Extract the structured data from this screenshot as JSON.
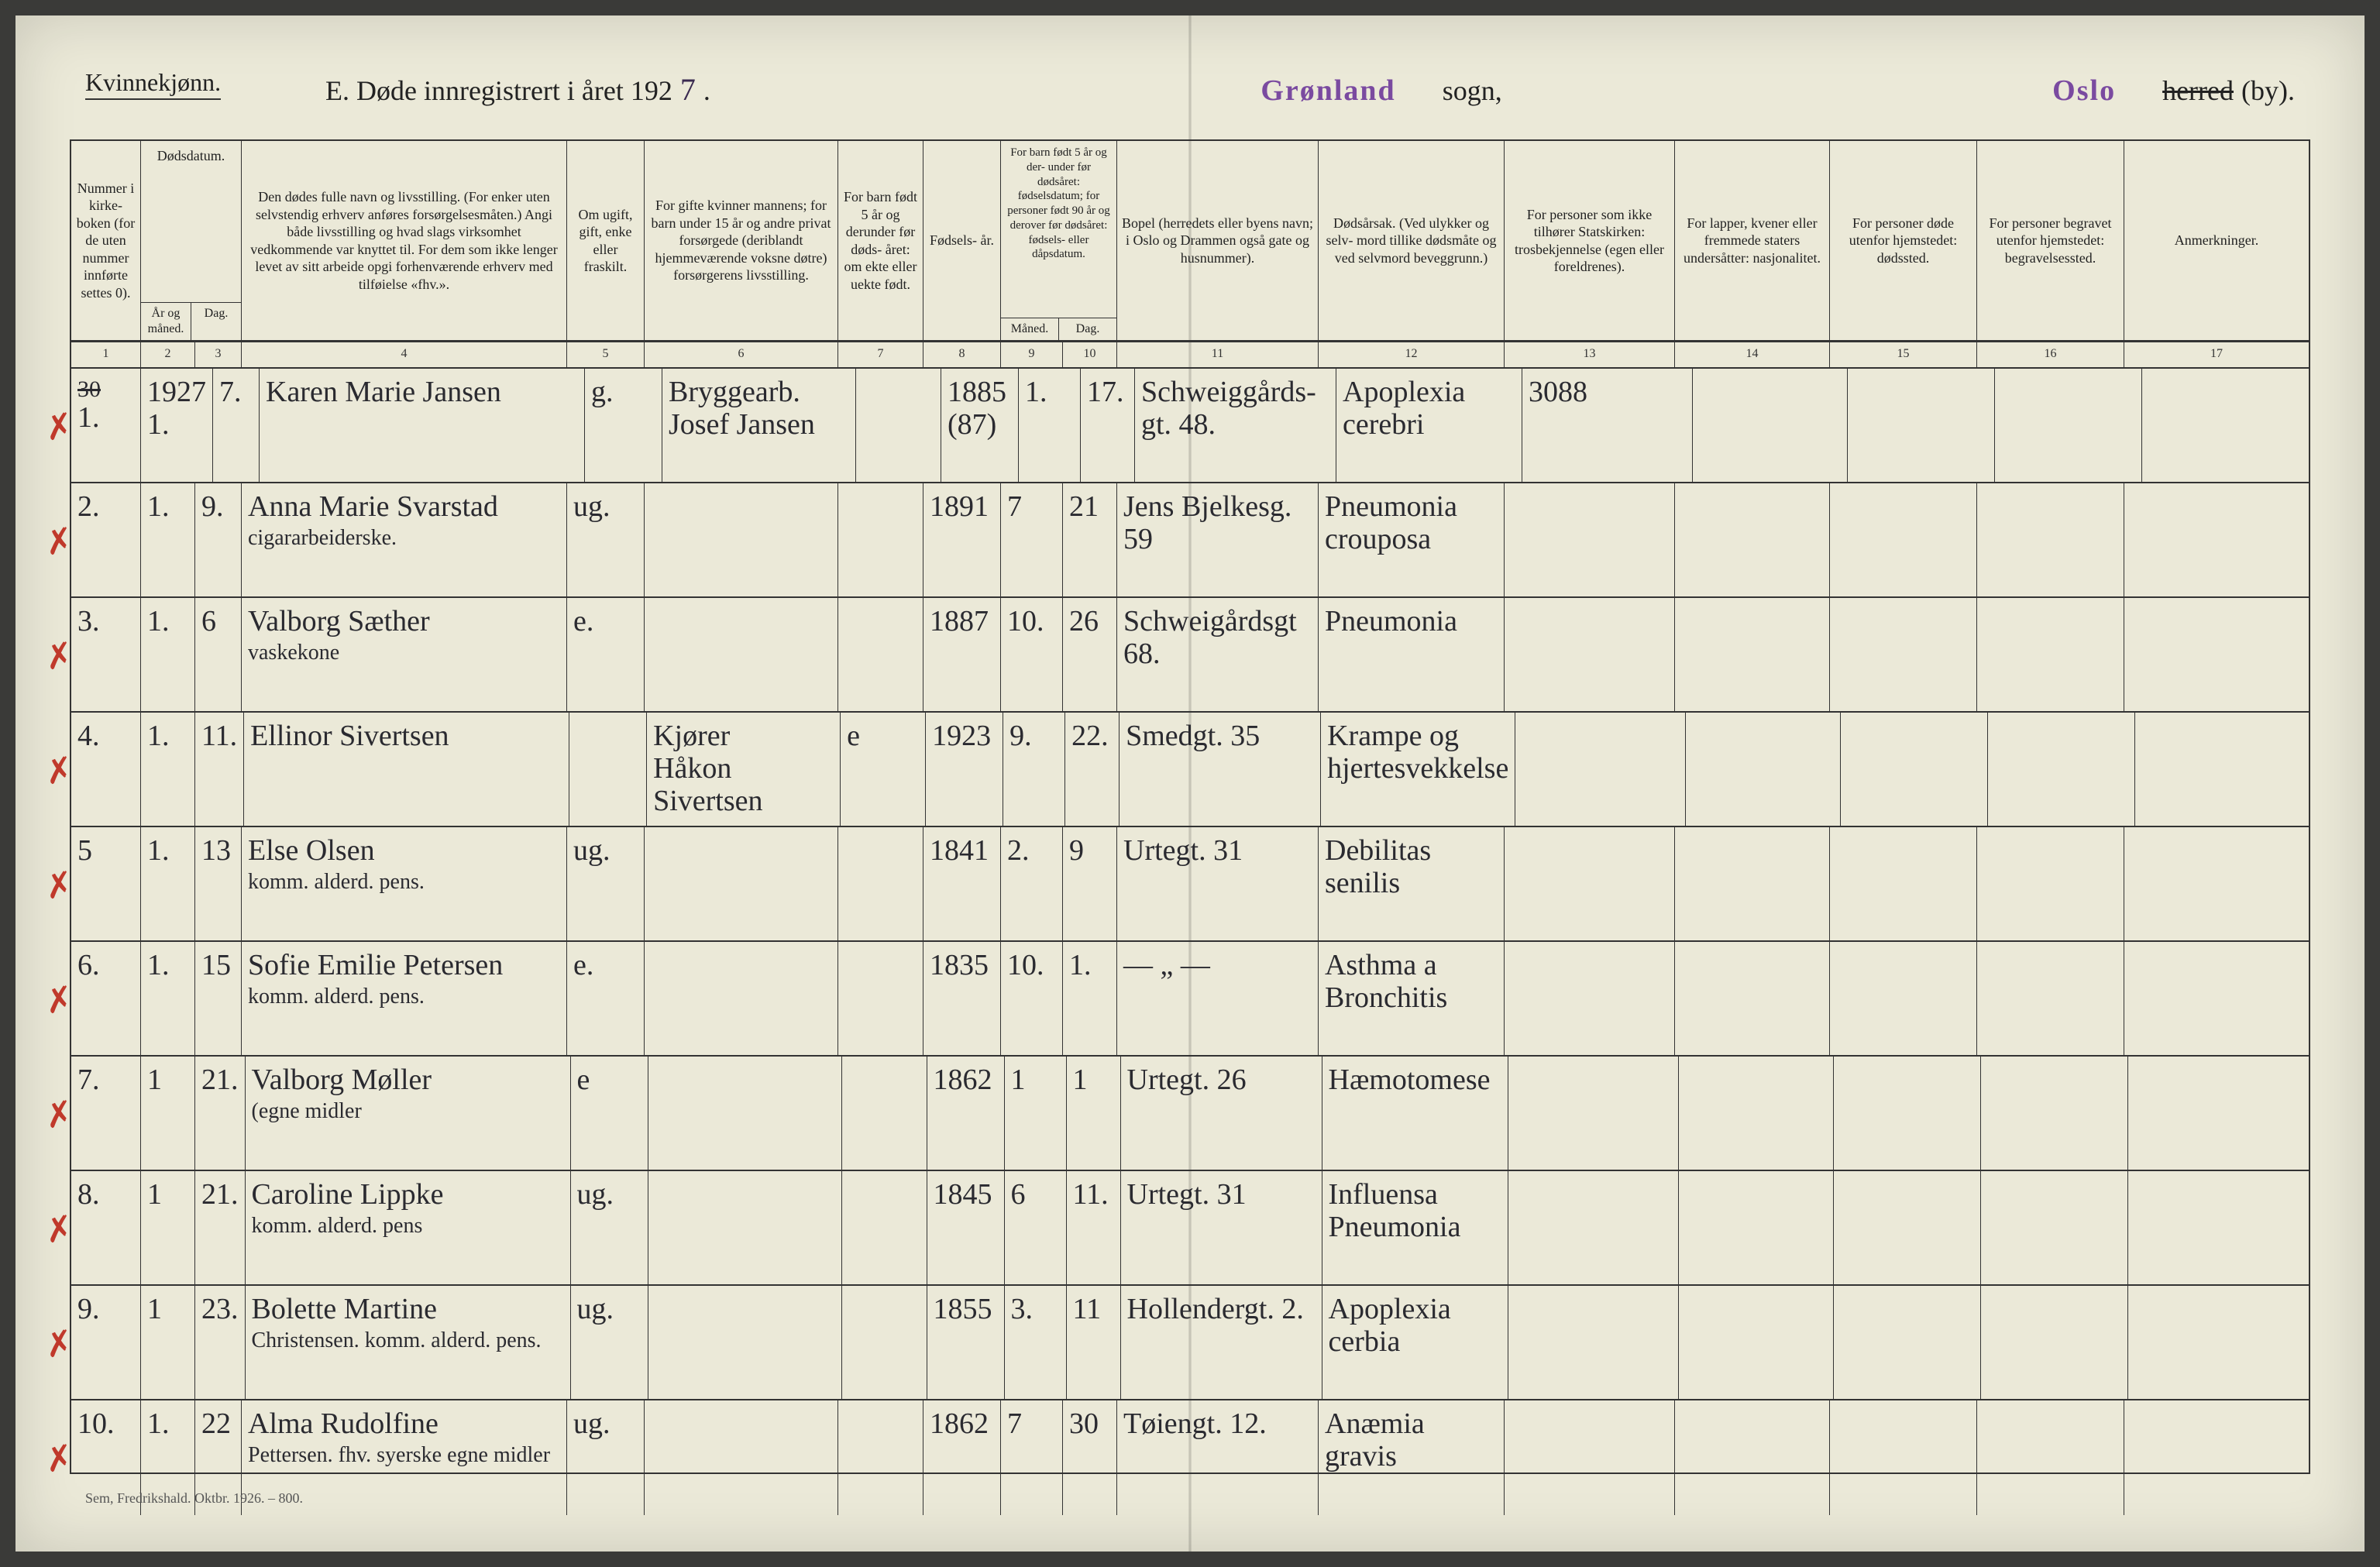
{
  "page": {
    "gender_label": "Kvinnekjønn.",
    "title_prefix": "E.   Døde innregistrert i året 192",
    "year_handwritten": "7",
    "period": ".",
    "parish_stamp": "Grønland",
    "parish_word": "sogn,",
    "city_stamp": "Oslo",
    "herred_struck": "herred",
    "by_word": "(by).",
    "footer": "Sem, Fredrikshald. Oktbr. 1926. – 800."
  },
  "headers": {
    "c1": "Nummer i kirke- boken (for de uten nummer innførte settes 0).",
    "c2": "Dødsdatum.",
    "c2a": "År og måned.",
    "c2b": "Dag.",
    "c3": "Den dødes fulle navn og livsstilling. (For enker uten selvstendig erhverv anføres forsørgelsesmåten.) Angi både livsstilling og hvad slags virksomhet vedkommende var knyttet til. For dem som ikke lenger levet av sitt arbeide opgi forhenværende erhverv med tilføielse «fhv.».",
    "c4": "Om ugift, gift, enke eller fraskilt.",
    "c5": "For gifte kvinner mannens; for barn under 15 år og andre privat forsørgede (deriblandt hjemmeværende voksne døtre) forsørgerens livsstilling.",
    "c6": "For barn født 5 år og derunder før døds- året: om ekte eller uekte født.",
    "c7": "Fødsels- år.",
    "c8": "For barn født 5 år og der- under før dødsåret: fødselsdatum; for personer født 90 år og derover før dødsåret: fødsels- eller dåpsdatum.",
    "c8a": "Måned.",
    "c8b": "Dag.",
    "c9": "Bopel (herredets eller byens navn; i Oslo og Drammen også gate og husnummer).",
    "c10": "Dødsårsak. (Ved ulykker og selv- mord tillike dødsmåte og ved selvmord beveggrunn.)",
    "c11": "For personer som ikke tilhører Statskirken: trosbekjennelse (egen eller foreldrenes).",
    "c12": "For lapper, kvener eller fremmede staters undersåtter: nasjonalitet.",
    "c13": "For personer døde utenfor hjemstedet: dødssted.",
    "c14": "For personer begravet utenfor hjemstedet: begravelsessted.",
    "c15": "Anmerkninger."
  },
  "colnums": [
    "1",
    "2",
    "3",
    "4",
    "5",
    "6",
    "7",
    "8",
    "9",
    "10",
    "11",
    "12",
    "13",
    "14",
    "15",
    "16",
    "17"
  ],
  "rows": [
    {
      "mark": "✗",
      "num_top": "30",
      "num": "1.",
      "yearmon": "1927\n1.",
      "day": "7.",
      "name": "Karen Marie Jansen",
      "name2": "",
      "status": "g.",
      "provider": "Bryggearb.\nJosef Jansen",
      "legit": "",
      "birth": "1885\n(87)",
      "bmon": "1.",
      "bday": "17.",
      "residence": "Schweiggårds- gt. 48.",
      "cause": "Apoplexia cerebri",
      "c11": "3088",
      "c11_style": "pencil"
    },
    {
      "mark": "✗",
      "num": "2.",
      "yearmon": "1.",
      "day": "9.",
      "name": "Anna Marie Svarstad",
      "name2": "cigararbeiderske.",
      "status": "ug.",
      "provider": "",
      "legit": "",
      "birth": "1891",
      "bmon": "7",
      "bday": "21",
      "residence": "Jens Bjelkesg. 59",
      "cause": "Pneumonia crouposa"
    },
    {
      "mark": "✗",
      "num": "3.",
      "yearmon": "1.",
      "day": "6",
      "name": "Valborg Sæther",
      "name2": "vaskekone",
      "status": "e.",
      "provider": "",
      "legit": "",
      "birth": "1887",
      "bmon": "10.",
      "bday": "26",
      "residence": "Schweigårdsgt 68.",
      "cause": "Pneumonia"
    },
    {
      "mark": "✗",
      "num": "4.",
      "yearmon": "1.",
      "day": "11.",
      "name": "Ellinor Sivertsen",
      "name2": "",
      "status": "",
      "provider": "Kjører\nHåkon\nSivertsen",
      "legit": "e",
      "birth": "1923",
      "bmon": "9.",
      "bday": "22.",
      "residence": "Smedgt. 35",
      "cause": "Krampe og hjertesvekkelse"
    },
    {
      "mark": "✗",
      "num": "5",
      "yearmon": "1.",
      "day": "13",
      "name": "Else Olsen",
      "name2": "komm. alderd. pens.",
      "status": "ug.",
      "provider": "",
      "legit": "",
      "birth": "1841",
      "bmon": "2.",
      "bday": "9",
      "residence": "Urtegt. 31",
      "cause": "Debilitas senilis"
    },
    {
      "mark": "✗",
      "num": "6.",
      "yearmon": "1.",
      "day": "15",
      "name": "Sofie Emilie Petersen",
      "name2": "komm. alderd. pens.",
      "status": "e.",
      "provider": "",
      "legit": "",
      "birth": "1835",
      "bmon": "10.",
      "bday": "1.",
      "residence": "— „ —",
      "cause": "Asthma a\nBronchitis"
    },
    {
      "mark": "✗",
      "num": "7.",
      "yearmon": "1",
      "day": "21.",
      "name": "Valborg Møller",
      "name2": "(egne midler",
      "status": "e",
      "provider": "",
      "legit": "",
      "birth": "1862",
      "bmon": "1",
      "bday": "1",
      "residence": "Urtegt. 26",
      "cause": "Hæmotomese"
    },
    {
      "mark": "✗",
      "num": "8.",
      "yearmon": "1",
      "day": "21.",
      "name": "Caroline Lippke",
      "name2": "komm. alderd. pens",
      "status": "ug.",
      "provider": "",
      "legit": "",
      "birth": "1845",
      "bmon": "6",
      "bday": "11.",
      "residence": "Urtegt. 31",
      "cause": "Influensa\nPneumonia"
    },
    {
      "mark": "✗",
      "num": "9.",
      "yearmon": "1",
      "day": "23.",
      "name": "Bolette Martine",
      "name2": "Christensen. komm. alderd. pens.",
      "status": "ug.",
      "provider": "",
      "legit": "",
      "birth": "1855",
      "bmon": "3.",
      "bday": "11",
      "residence": "Hollendergt. 2.",
      "cause": "Apoplexia cerbia"
    },
    {
      "mark": "✗",
      "num": "10.",
      "yearmon": "1.",
      "day": "22",
      "name": "Alma Rudolfine",
      "name2": "Pettersen. fhv. syerske\negne midler",
      "status": "ug.",
      "provider": "",
      "legit": "",
      "birth": "1862",
      "bmon": "7",
      "bday": "30",
      "residence": "Tøiengt. 12.",
      "cause": "Anæmia gravis"
    }
  ],
  "style": {
    "paper_bg": "#ebe9d8",
    "ink": "#222222",
    "handwriting": "#2a2a30",
    "stamp": "#7a4aa0",
    "redmark": "#c0392b",
    "rule": "#333333"
  }
}
